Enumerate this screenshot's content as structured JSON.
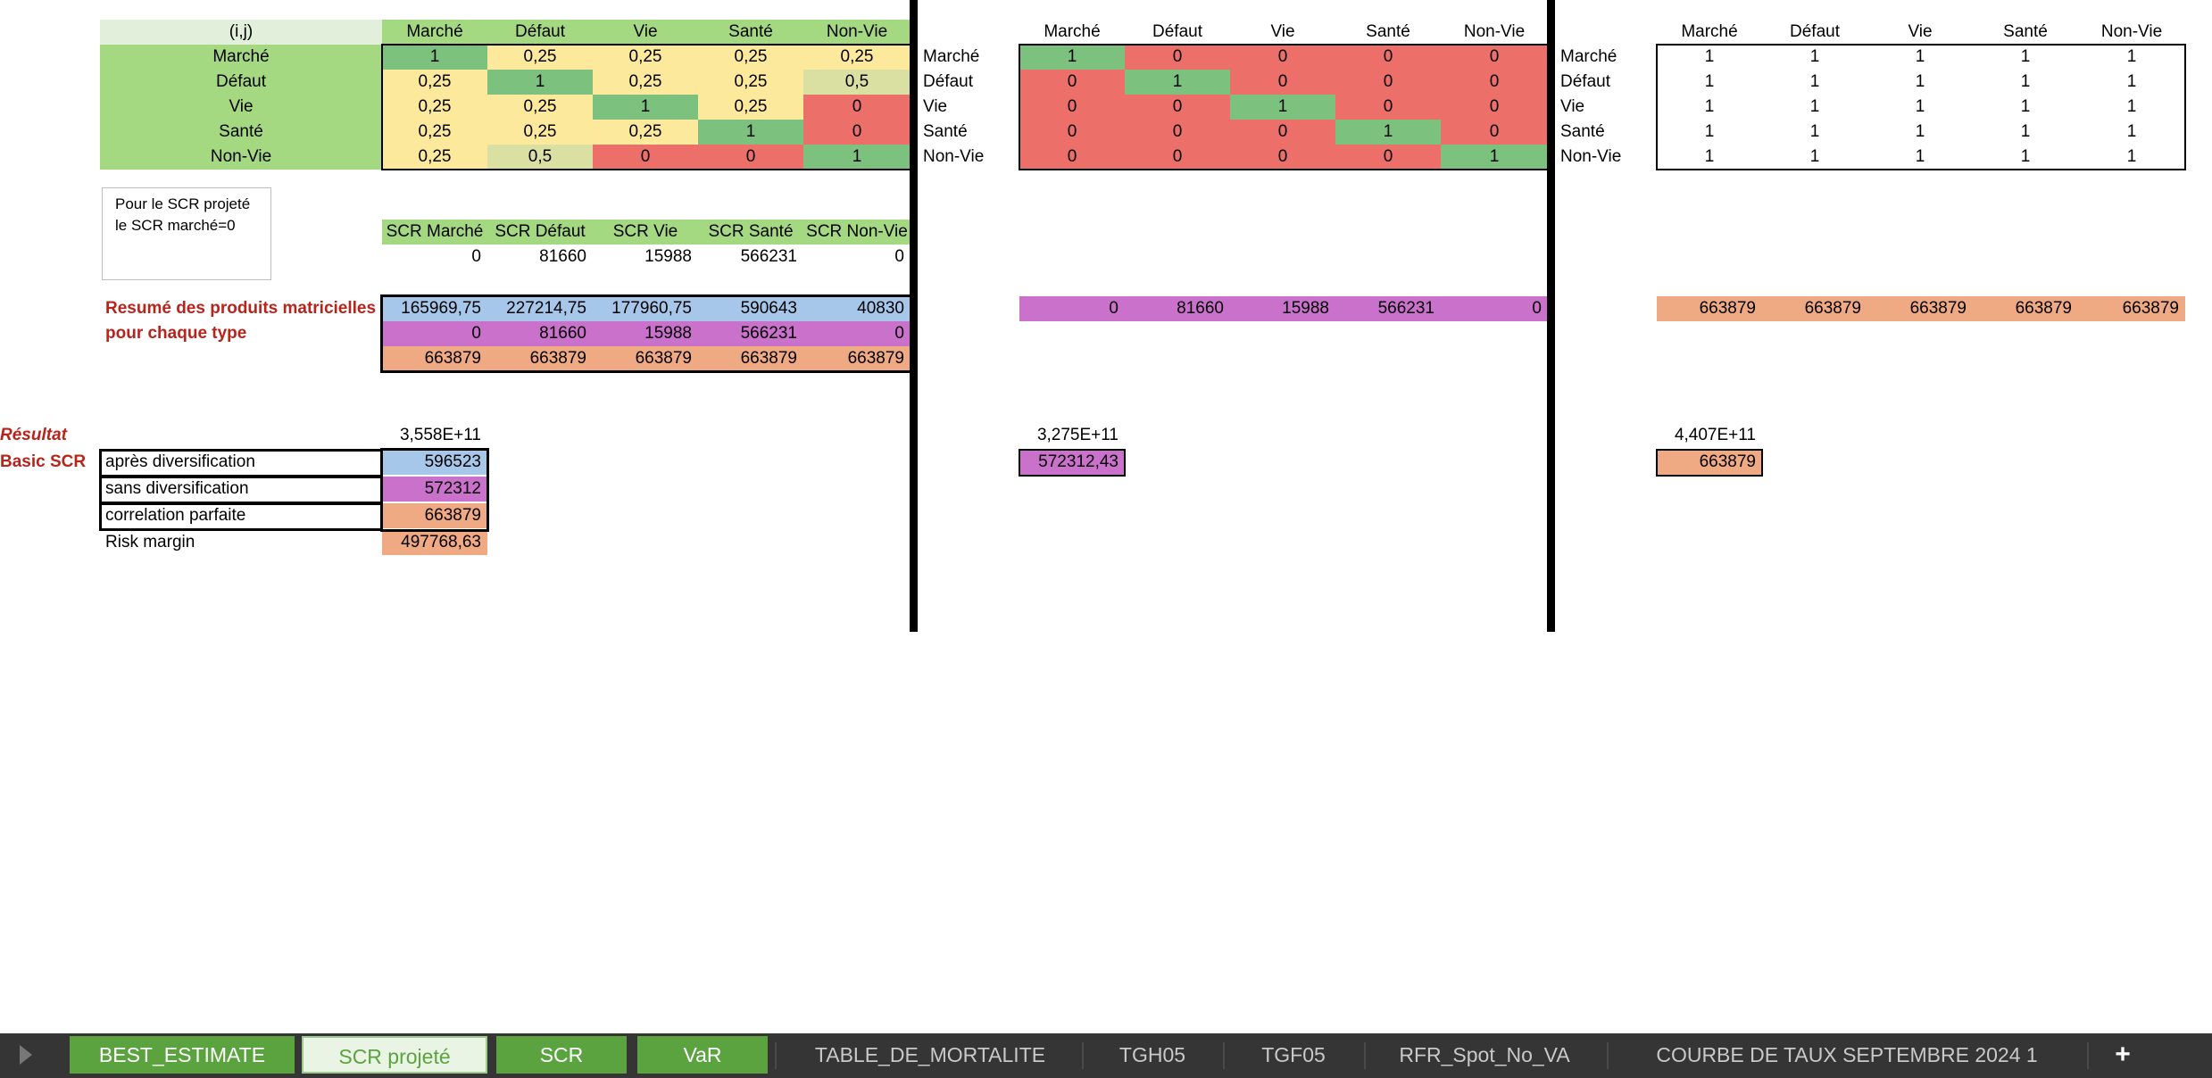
{
  "labels": [
    "Marché",
    "Défaut",
    "Vie",
    "Santé",
    "Non-Vie"
  ],
  "corner": "(i,j)",
  "matrix1": [
    [
      "1",
      "0,25",
      "0,25",
      "0,25",
      "0,25"
    ],
    [
      "0,25",
      "1",
      "0,25",
      "0,25",
      "0,5"
    ],
    [
      "0,25",
      "0,25",
      "1",
      "0,25",
      "0"
    ],
    [
      "0,25",
      "0,25",
      "0,25",
      "1",
      "0"
    ],
    [
      "0,25",
      "0,5",
      "0",
      "0",
      "1"
    ]
  ],
  "matrix2": [
    [
      "1",
      "0",
      "0",
      "0",
      "0"
    ],
    [
      "0",
      "1",
      "0",
      "0",
      "0"
    ],
    [
      "0",
      "0",
      "1",
      "0",
      "0"
    ],
    [
      "0",
      "0",
      "0",
      "1",
      "0"
    ],
    [
      "0",
      "0",
      "0",
      "0",
      "1"
    ]
  ],
  "matrix3": [
    [
      "1",
      "1",
      "1",
      "1",
      "1"
    ],
    [
      "1",
      "1",
      "1",
      "1",
      "1"
    ],
    [
      "1",
      "1",
      "1",
      "1",
      "1"
    ],
    [
      "1",
      "1",
      "1",
      "1",
      "1"
    ],
    [
      "1",
      "1",
      "1",
      "1",
      "1"
    ]
  ],
  "note": {
    "line1": "Pour le SCR projeté",
    "line2": "le SCR marché=0"
  },
  "scr_headers": [
    "SCR Marché",
    "SCR Défaut",
    "SCR Vie",
    "SCR Santé",
    "SCR Non-Vie"
  ],
  "scr_values": [
    "0",
    "81660",
    "15988",
    "566231",
    "0"
  ],
  "summary_label1": "Resumé des produits matricielles",
  "summary_label2": "pour chaque type",
  "summary_rows": [
    [
      "165969,75",
      "227214,75",
      "177960,75",
      "590643",
      "40830"
    ],
    [
      "0",
      "81660",
      "15988",
      "566231",
      "0"
    ],
    [
      "663879",
      "663879",
      "663879",
      "663879",
      "663879"
    ]
  ],
  "mid_row": [
    "0",
    "81660",
    "15988",
    "566231",
    "0"
  ],
  "right_row": [
    "663879",
    "663879",
    "663879",
    "663879",
    "663879"
  ],
  "resultat_label": "Résultat",
  "basic_scr_label": "Basic SCR",
  "res1": "3,558E+11",
  "res2": "3,275E+11",
  "res3": "4,407E+11",
  "scr_labels": [
    "après diversification",
    "sans diversification",
    "correlation parfaite",
    "Risk margin"
  ],
  "scr_results": [
    "596523",
    "572312",
    "663879",
    "497768,63"
  ],
  "mid_scr": "572312,43",
  "right_scr": "663879",
  "tabs": [
    "BEST_ESTIMATE",
    "SCR projeté",
    "SCR",
    "VaR",
    "TABLE_DE_MORTALITE",
    "TGH05",
    "TGF05",
    "RFR_Spot_No_VA",
    "COURBE DE TAUX SEPTEMBRE 2024 1"
  ],
  "add_tab": "+",
  "colors": {
    "green": "#a4d982",
    "dark_green": "#7cc27e",
    "yellow": "#fde99c",
    "red": "#ec6f6a",
    "blue": "#a6c7e9",
    "purple": "#c971cb",
    "orange": "#efa983",
    "tab_green": "#5aa33f"
  }
}
